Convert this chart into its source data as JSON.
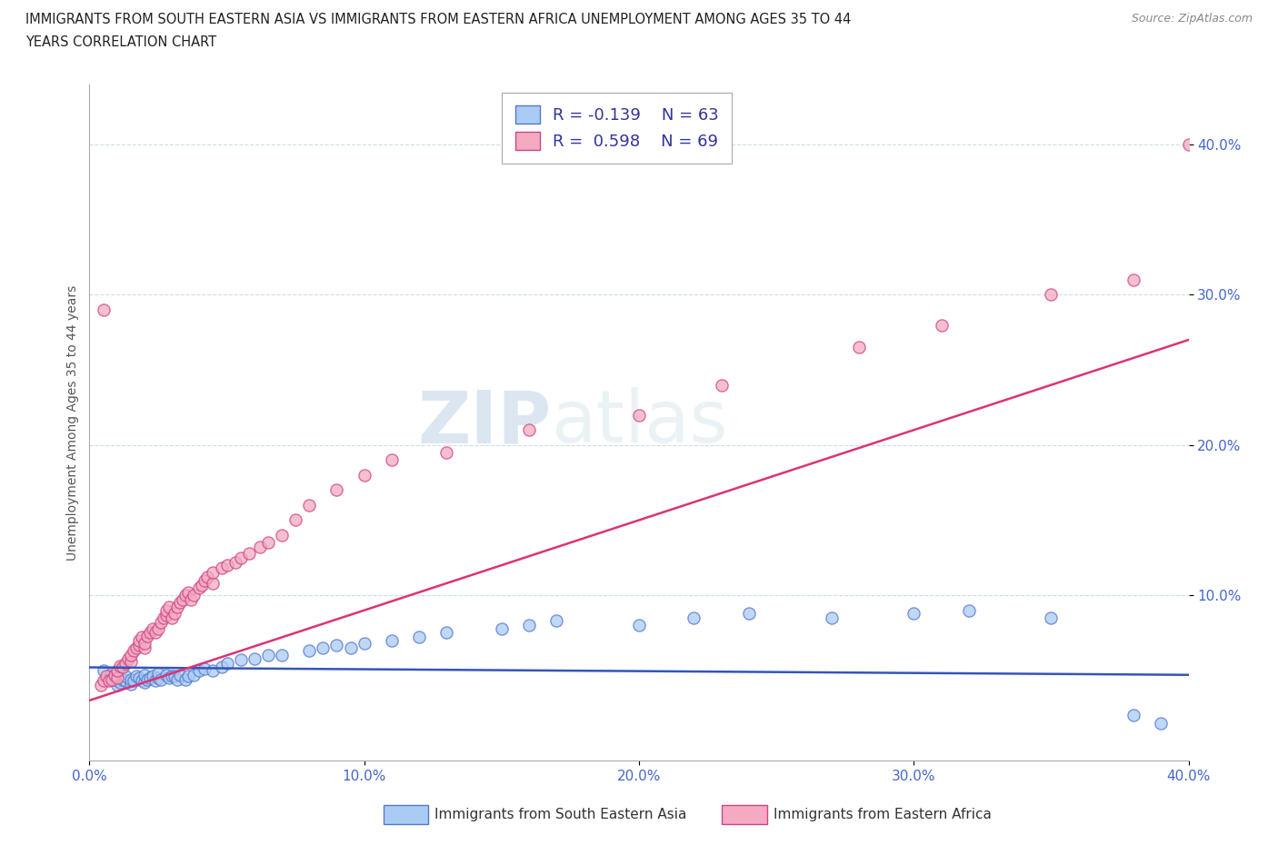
{
  "title_line1": "IMMIGRANTS FROM SOUTH EASTERN ASIA VS IMMIGRANTS FROM EASTERN AFRICA UNEMPLOYMENT AMONG AGES 35 TO 44",
  "title_line2": "YEARS CORRELATION CHART",
  "source": "Source: ZipAtlas.com",
  "ylabel": "Unemployment Among Ages 35 to 44 years",
  "xlim": [
    0.0,
    0.4
  ],
  "ylim": [
    -0.01,
    0.44
  ],
  "xtick_labels": [
    "0.0%",
    "10.0%",
    "20.0%",
    "30.0%",
    "40.0%"
  ],
  "xtick_vals": [
    0.0,
    0.1,
    0.2,
    0.3,
    0.4
  ],
  "ytick_labels": [
    "10.0%",
    "20.0%",
    "30.0%",
    "40.0%"
  ],
  "ytick_vals": [
    0.1,
    0.2,
    0.3,
    0.4
  ],
  "blue_R": -0.139,
  "blue_N": 63,
  "pink_R": 0.598,
  "pink_N": 69,
  "blue_color": "#aaccf4",
  "pink_color": "#f4aac0",
  "blue_edge_color": "#5577cc",
  "pink_edge_color": "#cc4488",
  "blue_line_color": "#3355bb",
  "pink_line_color": "#dd3377",
  "watermark": "ZIPatlas",
  "legend_label_blue": "Immigrants from South Eastern Asia",
  "legend_label_pink": "Immigrants from Eastern Africa",
  "background_color": "#ffffff",
  "grid_color": "#ccdde8",
  "title_color": "#222222",
  "blue_scatter_x": [
    0.005,
    0.007,
    0.008,
    0.01,
    0.01,
    0.01,
    0.011,
    0.012,
    0.013,
    0.013,
    0.015,
    0.015,
    0.016,
    0.017,
    0.018,
    0.019,
    0.02,
    0.02,
    0.021,
    0.022,
    0.023,
    0.024,
    0.025,
    0.025,
    0.026,
    0.028,
    0.029,
    0.03,
    0.031,
    0.032,
    0.033,
    0.035,
    0.036,
    0.038,
    0.04,
    0.042,
    0.045,
    0.048,
    0.05,
    0.055,
    0.06,
    0.065,
    0.07,
    0.08,
    0.085,
    0.09,
    0.095,
    0.1,
    0.11,
    0.12,
    0.13,
    0.15,
    0.16,
    0.17,
    0.2,
    0.22,
    0.24,
    0.27,
    0.3,
    0.32,
    0.35,
    0.38,
    0.39
  ],
  "blue_scatter_y": [
    0.05,
    0.045,
    0.048,
    0.04,
    0.043,
    0.047,
    0.042,
    0.044,
    0.043,
    0.046,
    0.041,
    0.044,
    0.043,
    0.046,
    0.045,
    0.043,
    0.042,
    0.047,
    0.044,
    0.045,
    0.046,
    0.043,
    0.045,
    0.048,
    0.044,
    0.047,
    0.045,
    0.046,
    0.046,
    0.044,
    0.047,
    0.044,
    0.046,
    0.047,
    0.05,
    0.051,
    0.05,
    0.052,
    0.055,
    0.057,
    0.058,
    0.06,
    0.06,
    0.063,
    0.065,
    0.067,
    0.065,
    0.068,
    0.07,
    0.072,
    0.075,
    0.078,
    0.08,
    0.083,
    0.08,
    0.085,
    0.088,
    0.085,
    0.088,
    0.09,
    0.085,
    0.02,
    0.015
  ],
  "pink_scatter_x": [
    0.004,
    0.005,
    0.006,
    0.007,
    0.008,
    0.009,
    0.01,
    0.01,
    0.011,
    0.012,
    0.013,
    0.014,
    0.015,
    0.015,
    0.016,
    0.017,
    0.018,
    0.018,
    0.019,
    0.02,
    0.02,
    0.021,
    0.022,
    0.023,
    0.024,
    0.025,
    0.026,
    0.027,
    0.028,
    0.028,
    0.029,
    0.03,
    0.031,
    0.032,
    0.033,
    0.034,
    0.035,
    0.036,
    0.037,
    0.038,
    0.04,
    0.041,
    0.042,
    0.043,
    0.045,
    0.045,
    0.048,
    0.05,
    0.053,
    0.055,
    0.058,
    0.062,
    0.065,
    0.07,
    0.075,
    0.08,
    0.09,
    0.1,
    0.11,
    0.13,
    0.16,
    0.2,
    0.23,
    0.28,
    0.31,
    0.35,
    0.38,
    0.4,
    0.005
  ],
  "pink_scatter_y": [
    0.04,
    0.043,
    0.046,
    0.043,
    0.044,
    0.047,
    0.045,
    0.05,
    0.053,
    0.052,
    0.055,
    0.058,
    0.056,
    0.06,
    0.063,
    0.065,
    0.067,
    0.07,
    0.072,
    0.065,
    0.068,
    0.073,
    0.075,
    0.078,
    0.075,
    0.078,
    0.082,
    0.085,
    0.087,
    0.09,
    0.092,
    0.085,
    0.088,
    0.092,
    0.095,
    0.097,
    0.1,
    0.102,
    0.097,
    0.1,
    0.105,
    0.107,
    0.11,
    0.112,
    0.108,
    0.115,
    0.118,
    0.12,
    0.122,
    0.125,
    0.128,
    0.132,
    0.135,
    0.14,
    0.15,
    0.16,
    0.17,
    0.18,
    0.19,
    0.195,
    0.21,
    0.22,
    0.24,
    0.265,
    0.28,
    0.3,
    0.31,
    0.4,
    0.29
  ]
}
